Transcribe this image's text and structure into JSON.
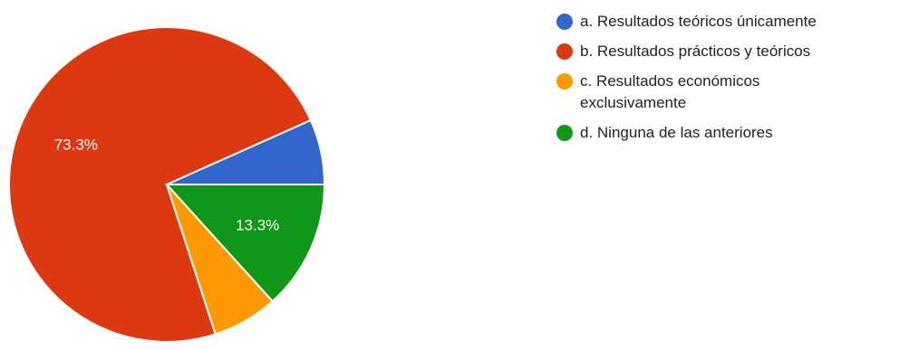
{
  "chart_data": {
    "type": "pie",
    "slices": [
      {
        "label": "a. Resultados teóricos únicamente",
        "value": 6.7,
        "color": "#3366cc",
        "data_label": ""
      },
      {
        "label": "b. Resultados prácticos y teóricos",
        "value": 73.3,
        "color": "#dc3912",
        "data_label": "73.3%"
      },
      {
        "label": "c. Resultados económicos exclusivamente",
        "value": 6.7,
        "color": "#ff9900",
        "data_label": ""
      },
      {
        "label": "d. Ninguna de las anteriores",
        "value": 13.3,
        "color": "#109618",
        "data_label": "13.3%"
      }
    ]
  }
}
